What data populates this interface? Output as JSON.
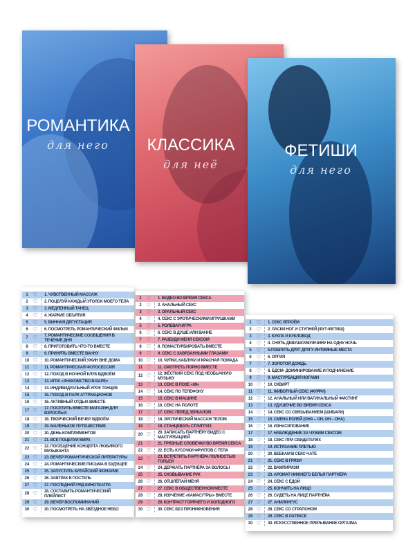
{
  "covers": [
    {
      "title": "РОМАНТИКА",
      "subtitle": "для него",
      "color": "#3c78c8"
    },
    {
      "title": "КЛАССИКА",
      "subtitle": "для неё",
      "color": "#e06a70"
    },
    {
      "title": "ФЕТИШИ",
      "subtitle": "для него",
      "color": "#3b8cc8"
    }
  ],
  "lists": [
    {
      "stripe": "#b4d0ee",
      "items": [
        "1. ЧУВСТВЕННЫЙ МАССАЖ",
        "2. ПОЦЕЛУЙ КАЖДЫЙ УГОЛОК МОЕГО ТЕЛА",
        "3. МЕДЛЕННЫЙ ТАНЕЦ",
        "4. ЖАРКИЕ ОБЪЯТИЯ",
        "5. ВИННАЯ ДЕГУСТАЦИЯ",
        "6. ПОСМОТРЕТЬ РОМАНТИЧЕСКИЙ ФИЛЬМ",
        "7. РОМАНТИЧЕСКИЕ СООБЩЕНИЯ В ТЕЧЕНИЕ ДНЯ",
        "8. ПРИГОТОВИТЬ ЧТО-ТО ВМЕСТЕ",
        "9. ПРИНЯТЬ ВМЕСТЕ ВАННУ",
        "10. РОМАНТИЧЕСКИЙ УЖИН ВНЕ ДОМА",
        "11. РОМАНТИЧЕСКАЯ ФОТОСЕССИЯ",
        "12. ПОХОД В НОЧНОЙ КЛУБ ВДВОЁМ",
        "13. ИГРА «ЗНАКОМСТВО В БАРЕ»",
        "14. ИНДИВИДУАЛЬНЫЙ УРОК ТАНЦЕВ",
        "15. ПОХОД В ПАРК АТТРАКЦИОНОВ",
        "16. АКТИВНЫЙ ОТДЫХ ВМЕСТЕ",
        "17. ПОСЕТИТЬ ВМЕСТЕ МАГАЗИН ДЛЯ ВЗРОСЛЫХ",
        "18. ТВОРЧЕСКИЙ ВЕЧЕР ВДВОЁМ",
        "19. МАЛЕНЬКОЕ ПУТЕШЕСТВИЕ",
        "20. ДЕНЬ КОМПЛИМЕНТОВ",
        "21. ВСЕ ПОЦЕЛУИ МИРА",
        "22. ПОСЕЩЕНИЕ КОНЦЕРТА ЛЮБИМОГО МУЗЫКАНТА",
        "23. ВЕЧЕР РОМАНТИЧЕСКОЙ ЛИТЕРАТУРЫ",
        "24. РОМАНТИЧЕСКИЕ ПИСЬМА В БУДУЩЕЕ",
        "25. ЗАПУСТИТЬ КИТАЙСКИЙ ФОНАРИК",
        "26. ЗАВТРАК В ПОСТЕЛЬ",
        "27. ПОСЛЕДНИЙ РЯД КИНОТЕАТРА",
        "28. СОСТАВИТЬ РОМАНТИЧЕСКИЙ ПЛЕЙЛИСТ",
        "29. ВЕЧЕР ВОСПОМИНАНИЙ",
        "30. ПОСМОТРЕТЬ НА ЗВЁЗДНОЕ НЕБО"
      ]
    },
    {
      "stripe": "#f0a3b2",
      "items": [
        "1. ВИДЕО ВО ВРЕМЯ СЕКСА",
        "2. АНАЛЬНЫЙ СЕКС",
        "3. ОРАЛЬНЫЙ СЕКС",
        "4. СЕКС С ЭРОТИЧЕСКИМИ ИГРУШКАМИ",
        "5. РОЛЕВАЯ ИГРА",
        "6. СЕКС В ДУШЕ ИЛИ ВАННЕ",
        "7. РАЗБУДИ МЕНЯ СЕКСОМ",
        "8. ПОМАСТУРБИРОВАТЬ ВМЕСТЕ",
        "9. СЕКС С ЗАВЯЗАННЫМИ ГЛАЗАМИ",
        "10. ЧУЛКИ, КАБЛУКИ И КРАСНАЯ ПОМАДА",
        "11. СМОТРЕТЬ ПОРНО ВМЕСТЕ",
        "12. ЖЁСТКИЙ СЕКС ПОД НЕОБЫЧНУЮ МУЗЫКУ",
        "13. СЕКС В ПОЗЕ «69»",
        "14. СЕКС ПО ТЕЛЕФОНУ",
        "15. СЕКС В МАШИНЕ",
        "16. СЕКС НА ПОЛОТЕ",
        "17. СЕКС ПЕРЕД ЗЕРКАЛОМ",
        "18. ЭРОТИЧЕСКИЙ МАССАЖ ТЕЛОМ",
        "19. СТАНЦЕВАТЬ СТРИПТИЗ",
        "20. ЗАПИСАТЬ ПАРТНЁРУ ВИДЕО С МАСТУРБАЦИЕЙ",
        "21. ГРЯЗНЫЕ СЛОВЕЧКИ ВО ВРЕМЯ СЕКСА",
        "22. ЕСТЬ КУСОЧКИ ФРУКТОВ С ТЕЛА",
        "23. ВСТРЕТИТЬ ПАРТНЁРА ПОЛНОСТЬЮ ГОЛЬЕЙ",
        "24. ДЕРЖАТЬ ПАРТНЁРА ЗА ВОЛОСЫ",
        "25. СКОВЫВАНИЕ РУК",
        "26. ОТШЛЁПАЙ МЕНЯ",
        "27. СЕКС В ОБЩЕСТВЕННОМ МЕСТЕ",
        "28. ИЗУЧЕНИЕ «КАМАСУТРЫ» ВМЕСТЕ",
        "29. КОНТРАСТ ГОРЯЧЕГО И ХОЛОДНОГО",
        "30. СЕКС БЕЗ ПРОНИКНОВЕНИЯ"
      ]
    },
    {
      "stripe": "#b4d0ee",
      "items": [
        "1. СЕКС ВТРОЁМ",
        "2. ЛАСКИ НОГ И СТУПНЕЙ (ФУТ-ФЕТИШ)",
        "3. КУКЛА И КУКЛОВОД",
        "4. СНЯТЬ ДЕВУШКУ/МУЖЧИНУ НА ОДНУ НОЧЬ",
        "5.ПОБРИТЬ ДРУГ ДРУГУ ИНТИМНЫЕ МЕСТА",
        "6. ОРГИЯ",
        "7. ЗОЛОТОЙ ДОЖДЬ",
        "8. БДСМ- ДОМИНИРОВАНИЕ И ПОДЧИНЕНИЕ",
        "9. МАСТУРБАЦИЯ НОГАМИ",
        "10. СКВИРТ",
        "11. ЖИВОТНЫЙ СЕКС (ФУРРИ)",
        "12. АНАЛЬНЫЙ ИЛИ ВАГИНАЛЬНЫЙ ФИСТИНГ",
        "13. УДУШЕНИЕ ВО ВРЕМЯ СЕКСА",
        "14. СЕКС СО СВЯЗЫВАНИЕМ (ШИБАРИ)",
        "15. СМЕНА РОЛЕЙ (ОНА – ОН, ОН – ОНА)",
        "16. ИЗНАСИЛОВАНИЕ",
        "17. НАБЛЮДЕНИЕ ЗА ЧУЖИМ СЕКСОМ",
        "18. СЕКС ПРИ СВИДЕТЕЛЯХ",
        "19. ИСТЯЗАНИЕ ПЛЕТЬЮ",
        "20. ВЕБКАМ В СЕКС-ЧАТЕ",
        "21. СЕКС В ГРЯЗИ",
        "22. ВАМПИРИЗМ",
        "23. АРОМАТ НИЖНЕГО БЕЛЬЯ ПАРТНЁРА",
        "24. СЕКС С ЕДОЙ",
        "25. КОНЧИТЬ НА ЛИЦО",
        "26. СИДЕТЬ НА ЛИЦЕ ПАРТНЁРА",
        "27. АНИЛИНГУС",
        "28. СЕКС СО СТРАПОНОМ",
        "29. СЕКС В ЛАТЕКСЕ",
        "30. ИСКУССТВЕННОЕ ПРЕРЫВАНИЕ ОРГАЗМА"
      ]
    }
  ]
}
